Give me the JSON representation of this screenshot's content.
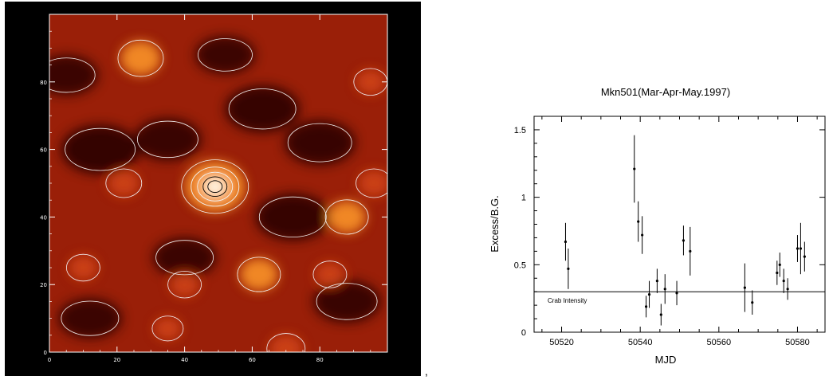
{
  "colors": {
    "map_low": "#2a0505",
    "map_mid": "#9a1f08",
    "map_high": "#ff9a2a",
    "map_peak": "#ffffff",
    "contour": "#f2f2f2",
    "contour_dark": "#000000",
    "axis": "#000000"
  },
  "separator": ",",
  "chart_data": [
    {
      "type": "heatmap",
      "title": "",
      "xlabel": "",
      "ylabel": "",
      "xlim": [
        0,
        100
      ],
      "ylim": [
        0,
        100
      ],
      "x_ticks": [
        "0",
        "20",
        "40",
        "60",
        "80"
      ],
      "y_ticks": [
        "0",
        "20",
        "40",
        "60",
        "80"
      ],
      "colormap": "red-temperature",
      "contours": true,
      "peak": {
        "x": 49,
        "y": 49
      },
      "hot_spots": [
        {
          "x": 49,
          "y": 49,
          "intensity": 1.0
        },
        {
          "x": 27,
          "y": 87,
          "intensity": 0.55
        },
        {
          "x": 88,
          "y": 40,
          "intensity": 0.5
        },
        {
          "x": 62,
          "y": 23,
          "intensity": 0.5
        },
        {
          "x": 22,
          "y": 50,
          "intensity": 0.35
        },
        {
          "x": 10,
          "y": 25,
          "intensity": 0.3
        },
        {
          "x": 96,
          "y": 50,
          "intensity": 0.35
        },
        {
          "x": 40,
          "y": 20,
          "intensity": 0.3
        },
        {
          "x": 83,
          "y": 23,
          "intensity": 0.3
        },
        {
          "x": 70,
          "y": 1,
          "intensity": 0.4
        },
        {
          "x": 95,
          "y": 80,
          "intensity": 0.3
        },
        {
          "x": 35,
          "y": 7,
          "intensity": 0.25
        }
      ],
      "cold_spots": [
        {
          "x": 15,
          "y": 60,
          "depth": 0.6
        },
        {
          "x": 63,
          "y": 72,
          "depth": 0.55
        },
        {
          "x": 80,
          "y": 62,
          "depth": 0.5
        },
        {
          "x": 72,
          "y": 40,
          "depth": 0.55
        },
        {
          "x": 88,
          "y": 15,
          "depth": 0.45
        },
        {
          "x": 35,
          "y": 63,
          "depth": 0.45
        },
        {
          "x": 40,
          "y": 28,
          "depth": 0.4
        },
        {
          "x": 12,
          "y": 10,
          "depth": 0.4
        },
        {
          "x": 5,
          "y": 82,
          "depth": 0.4
        },
        {
          "x": 52,
          "y": 88,
          "depth": 0.35
        }
      ]
    },
    {
      "type": "scatter",
      "title": "Mkn501(Mar-Apr-May.1997)",
      "xlabel": "MJD",
      "ylabel": "Excess/B.G.",
      "xlim": [
        50513,
        50587
      ],
      "ylim": [
        0,
        1.6
      ],
      "x_ticks": [
        "50520",
        "50540",
        "50560",
        "50580"
      ],
      "x_tick_values": [
        50520,
        50540,
        50560,
        50580
      ],
      "y_ticks": [
        "0",
        "0.5",
        "1",
        "1.5"
      ],
      "y_tick_values": [
        0,
        0.5,
        1,
        1.5
      ],
      "grid": false,
      "reference_line": {
        "label": "Crab Intensity",
        "y": 0.3
      },
      "points": [
        {
          "x": 50521.0,
          "y": 0.67,
          "err": 0.14
        },
        {
          "x": 50521.7,
          "y": 0.47,
          "err": 0.15
        },
        {
          "x": 50538.5,
          "y": 1.21,
          "err": 0.25
        },
        {
          "x": 50539.5,
          "y": 0.82,
          "err": 0.15
        },
        {
          "x": 50540.5,
          "y": 0.72,
          "err": 0.14
        },
        {
          "x": 50541.5,
          "y": 0.19,
          "err": 0.08
        },
        {
          "x": 50542.3,
          "y": 0.28,
          "err": 0.1
        },
        {
          "x": 50544.3,
          "y": 0.38,
          "err": 0.09
        },
        {
          "x": 50545.3,
          "y": 0.13,
          "err": 0.08
        },
        {
          "x": 50546.3,
          "y": 0.32,
          "err": 0.11
        },
        {
          "x": 50549.3,
          "y": 0.29,
          "err": 0.09
        },
        {
          "x": 50551.0,
          "y": 0.68,
          "err": 0.11
        },
        {
          "x": 50552.7,
          "y": 0.6,
          "err": 0.18
        },
        {
          "x": 50566.6,
          "y": 0.33,
          "err": 0.18
        },
        {
          "x": 50568.5,
          "y": 0.22,
          "err": 0.09
        },
        {
          "x": 50574.8,
          "y": 0.44,
          "err": 0.09
        },
        {
          "x": 50575.5,
          "y": 0.5,
          "err": 0.09
        },
        {
          "x": 50576.5,
          "y": 0.38,
          "err": 0.09
        },
        {
          "x": 50577.5,
          "y": 0.32,
          "err": 0.08
        },
        {
          "x": 50580.0,
          "y": 0.62,
          "err": 0.1
        },
        {
          "x": 50580.8,
          "y": 0.62,
          "err": 0.19
        },
        {
          "x": 50581.8,
          "y": 0.56,
          "err": 0.11
        }
      ]
    }
  ]
}
